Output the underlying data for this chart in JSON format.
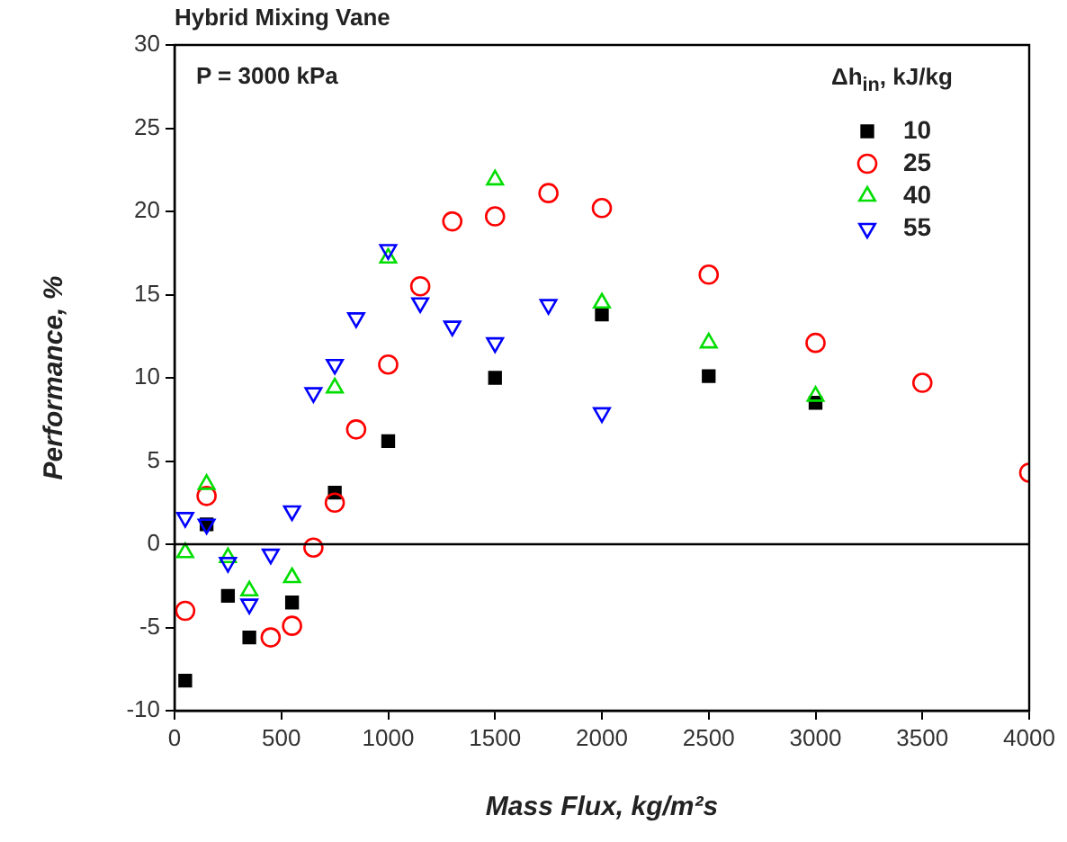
{
  "chart_data": {
    "type": "scatter",
    "title": "Hybrid Mixing Vane",
    "xlabel": "Mass Flux, kg/m²s",
    "ylabel": "Performance, %",
    "legend_title": "Δh$_{in}$, kJ/kg",
    "annotations": [
      "P = 3000 kPa"
    ],
    "xlim": [
      0,
      4000
    ],
    "xticks": [
      0,
      500,
      1000,
      1500,
      2000,
      2500,
      3000,
      3500,
      4000
    ],
    "ylim": [
      -10,
      30
    ],
    "yticks": [
      -10,
      -5,
      0,
      5,
      10,
      15,
      20,
      25,
      30
    ],
    "grid": false,
    "legend": "top right",
    "ref_lines": [
      {
        "axis": "y",
        "value": 0,
        "color": "#000000"
      }
    ],
    "series": [
      {
        "name": "10",
        "color": "#000000",
        "marker": "square",
        "x": [
          50,
          150,
          250,
          350,
          550,
          750,
          1000,
          1500,
          2000,
          2500,
          3000
        ],
        "values": [
          -8.2,
          1.2,
          -3.1,
          -5.6,
          -3.5,
          3.1,
          6.2,
          10.0,
          13.8,
          10.1,
          8.5
        ]
      },
      {
        "name": "25",
        "color": "#ff0000",
        "marker": "circle",
        "x": [
          50,
          150,
          450,
          550,
          650,
          750,
          850,
          1000,
          1150,
          1300,
          1500,
          1750,
          2000,
          2500,
          3000,
          3500,
          4000
        ],
        "values": [
          -4.0,
          2.9,
          -5.6,
          -4.9,
          -0.2,
          2.5,
          6.9,
          10.8,
          15.5,
          19.4,
          19.7,
          21.1,
          20.2,
          16.2,
          12.1,
          9.7,
          4.3
        ]
      },
      {
        "name": "40",
        "color": "#00dd00",
        "marker": "triangle",
        "x": [
          50,
          150,
          250,
          350,
          550,
          750,
          1000,
          1500,
          2000,
          2500,
          3000
        ],
        "values": [
          -0.5,
          3.6,
          -0.8,
          -2.8,
          -2.0,
          9.4,
          17.2,
          21.9,
          14.5,
          12.1,
          8.9
        ]
      },
      {
        "name": "55",
        "color": "#0000ff",
        "marker": "triangle-down",
        "x": [
          50,
          150,
          250,
          350,
          450,
          550,
          650,
          750,
          850,
          1000,
          1150,
          1300,
          1500,
          1750,
          2000
        ],
        "values": [
          1.6,
          1.2,
          -1.1,
          -3.6,
          -0.6,
          2.0,
          9.1,
          10.8,
          13.6,
          17.7,
          14.5,
          13.1,
          12.1,
          14.4,
          7.9
        ]
      }
    ]
  }
}
